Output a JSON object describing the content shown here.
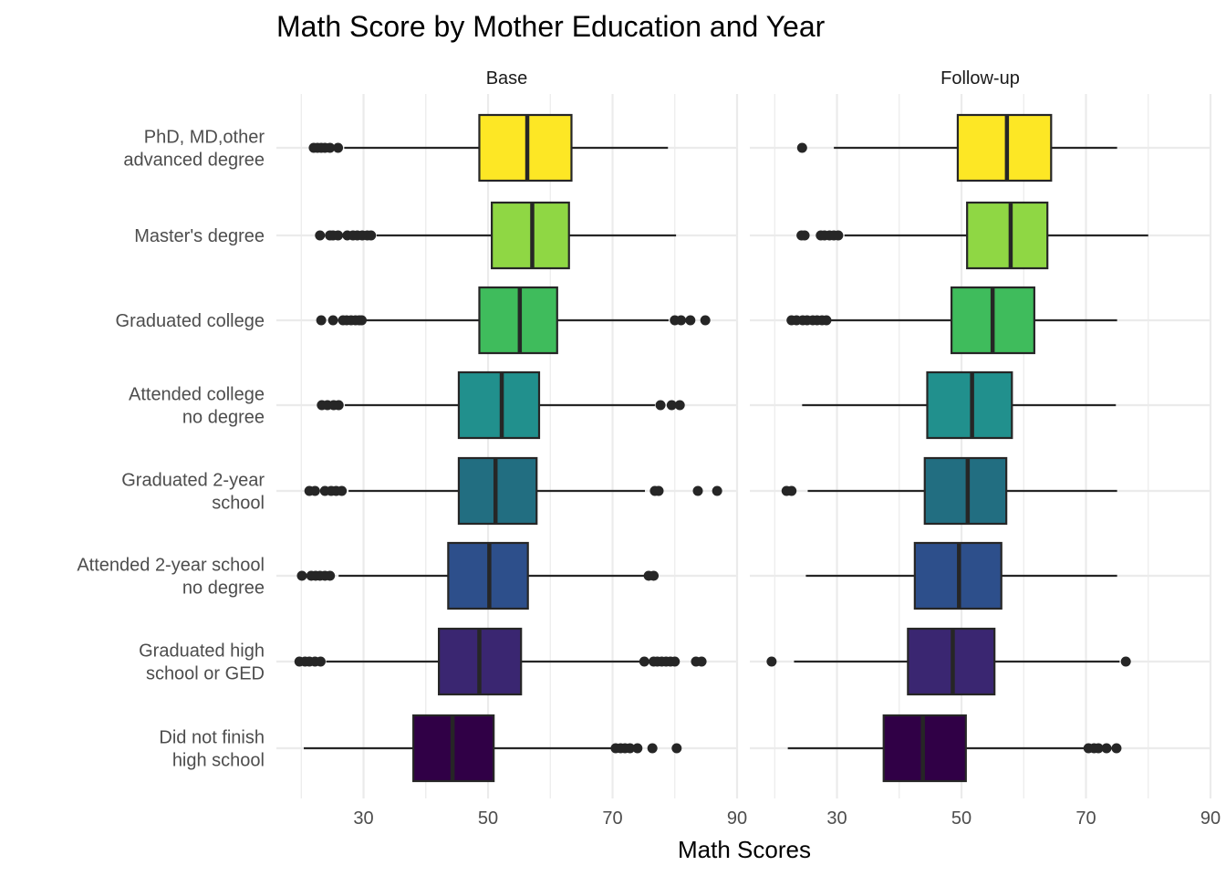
{
  "chart_data": {
    "type": "boxplot",
    "title": "Math Score by Mother Education and Year",
    "xlabel": "Math Scores",
    "ylabel": "",
    "xlim": [
      16,
      90
    ],
    "x_ticks": [
      30,
      50,
      70,
      90
    ],
    "grid": true,
    "legend": "none",
    "categories": [
      "PhD, MD,other\nadvanced degree",
      "Master's degree",
      "Graduated college",
      "Attended college\nno degree",
      "Graduated 2-year\nschool",
      "Attended 2-year school\nno degree",
      "Graduated high\nschool or GED",
      "Did not finish\nhigh school"
    ],
    "colors": [
      "#FDE725",
      "#8FD744",
      "#3FBC5C",
      "#21908D",
      "#226E81",
      "#2D4F8B",
      "#3A2671",
      "#300046"
    ],
    "facets": [
      {
        "name": "Base",
        "boxes": [
          {
            "min": 26.9,
            "q1": 48.6,
            "median": 56.3,
            "q3": 63.4,
            "max": 78.9,
            "outliers": [
              22.0,
              22.6,
              23.2,
              23.8,
              24.6,
              25.9
            ]
          },
          {
            "min": 32.1,
            "q1": 50.6,
            "median": 57.1,
            "q3": 63.0,
            "max": 80.2,
            "outliers": [
              23.0,
              24.6,
              25.1,
              25.9,
              27.4,
              28.3,
              29.0,
              29.8,
              30.6,
              31.2
            ]
          },
          {
            "min": 30.0,
            "q1": 48.6,
            "median": 55.1,
            "q3": 61.1,
            "max": 79.0,
            "outliers": [
              23.2,
              25.1,
              26.7,
              27.3,
              28.0,
              28.7,
              29.3,
              29.7,
              80.0,
              81.0,
              82.5,
              84.9
            ]
          },
          {
            "min": 27.0,
            "q1": 45.3,
            "median": 52.2,
            "q3": 58.2,
            "max": 76.8,
            "outliers": [
              23.3,
              24.2,
              25.2,
              26.0,
              77.7,
              79.5,
              80.8
            ]
          },
          {
            "min": 27.6,
            "q1": 45.3,
            "median": 51.2,
            "q3": 57.8,
            "max": 75.2,
            "outliers": [
              21.3,
              22.2,
              23.8,
              24.8,
              25.6,
              26.5,
              76.8,
              77.4,
              83.7,
              86.8
            ]
          },
          {
            "min": 26.0,
            "q1": 43.6,
            "median": 50.2,
            "q3": 56.4,
            "max": 75.5,
            "outliers": [
              20.1,
              21.6,
              22.3,
              23.0,
              23.8,
              24.6,
              75.8,
              76.6
            ]
          },
          {
            "min": 24.0,
            "q1": 42.1,
            "median": 48.6,
            "q3": 55.3,
            "max": 74.5,
            "outliers": [
              19.7,
              20.6,
              21.3,
              22.2,
              23.1,
              75.1,
              76.6,
              77.2,
              77.9,
              78.6,
              79.3,
              80.0,
              83.4,
              84.3
            ]
          },
          {
            "min": 20.4,
            "q1": 38.0,
            "median": 44.3,
            "q3": 50.9,
            "max": 70.0,
            "outliers": [
              70.5,
              71.3,
              72.0,
              72.8,
              74.0,
              76.4,
              80.3
            ]
          }
        ]
      },
      {
        "name": "Follow-up",
        "boxes": [
          {
            "min": 29.5,
            "q1": 49.4,
            "median": 57.3,
            "q3": 64.4,
            "max": 75.0,
            "outliers": [
              24.4
            ]
          },
          {
            "min": 31.2,
            "q1": 50.9,
            "median": 57.9,
            "q3": 63.8,
            "max": 80.0,
            "outliers": [
              24.3,
              24.8,
              27.4,
              28.0,
              28.8,
              29.5,
              30.2
            ]
          },
          {
            "min": 28.9,
            "q1": 48.4,
            "median": 55.0,
            "q3": 61.7,
            "max": 75.0,
            "outliers": [
              22.7,
              23.5,
              24.5,
              25.2,
              26.1,
              26.8,
              27.6,
              28.3
            ]
          },
          {
            "min": 24.4,
            "q1": 44.5,
            "median": 51.7,
            "q3": 58.1,
            "max": 74.8,
            "outliers": []
          },
          {
            "min": 25.3,
            "q1": 44.1,
            "median": 51.0,
            "q3": 57.2,
            "max": 75.0,
            "outliers": [
              21.9,
              22.7
            ]
          },
          {
            "min": 25.0,
            "q1": 42.5,
            "median": 49.6,
            "q3": 56.4,
            "max": 75.0,
            "outliers": []
          },
          {
            "min": 23.1,
            "q1": 41.4,
            "median": 48.6,
            "q3": 55.3,
            "max": 75.4,
            "outliers": [
              19.5,
              76.4
            ]
          },
          {
            "min": 22.1,
            "q1": 37.5,
            "median": 43.8,
            "q3": 50.7,
            "max": 70.0,
            "outliers": [
              70.4,
              71.3,
              72.0,
              73.3,
              74.9
            ]
          }
        ]
      }
    ]
  }
}
